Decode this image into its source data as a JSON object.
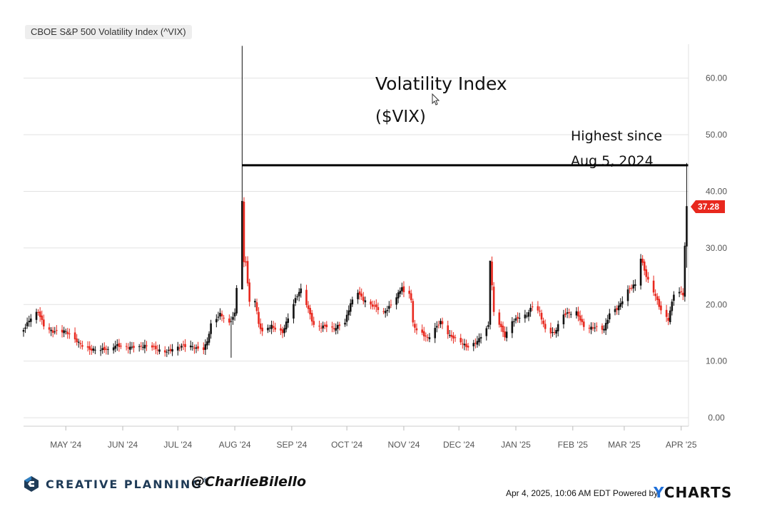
{
  "title": "CBOE S&P 500 Volatility Index (^VIX)",
  "annotations": {
    "main_line1": "Volatility Index",
    "main_line2": "($VIX)",
    "note_line1": "Highest since",
    "note_line2": "Aug 5, 2024"
  },
  "last_value_label": "37.28",
  "footer": {
    "brand": "CREATIVE PLANNING",
    "registered": "®",
    "handle": "@CharlieBilello",
    "timestamp": "Apr 4, 2025, 10:06 AM EDT Powered by",
    "provider_prefix": "Y",
    "provider_rest": "CHARTS"
  },
  "colors": {
    "up": "#111111",
    "down": "#e8281e",
    "grid": "#e2e2e2",
    "reference_line": "#000000",
    "badge": "#e8281e",
    "brand": "#1f3b57",
    "provider_accent": "#1e6fd9"
  },
  "icons": {
    "logo": "creative-planning-logo-mark"
  },
  "chart_data": {
    "type": "candlestick",
    "y_axis": {
      "min": -1.5,
      "max": 66,
      "ticks": [
        "0.00",
        "10.00",
        "20.00",
        "30.00",
        "40.00",
        "50.00",
        "60.00"
      ],
      "position": "right"
    },
    "x_axis": {
      "tick_labels": [
        "MAY '24",
        "JUN '24",
        "JUL '24",
        "AUG '24",
        "SEP '24",
        "OCT '24",
        "NOV '24",
        "DEC '24",
        "JAN '25",
        "FEB '25",
        "MAR '25",
        "APR '25"
      ],
      "tick_dates": [
        "2024-05-01",
        "2024-06-01",
        "2024-07-01",
        "2024-08-01",
        "2024-09-01",
        "2024-10-01",
        "2024-11-01",
        "2024-12-01",
        "2025-01-01",
        "2025-02-01",
        "2025-03-01",
        "2025-04-01"
      ],
      "range": [
        "2024-04-08",
        "2025-04-05"
      ]
    },
    "reference_line": {
      "value": 44.6,
      "from": "2024-08-05",
      "to": "2025-04-04"
    },
    "last_value": 37.28,
    "grid": "horizontal",
    "close_anchors": [
      [
        "2024-04-08",
        15.5
      ],
      [
        "2024-04-12",
        17.3
      ],
      [
        "2024-04-16",
        18.5
      ],
      [
        "2024-04-19",
        16.5
      ],
      [
        "2024-04-24",
        15.5
      ],
      [
        "2024-04-30",
        15.2
      ],
      [
        "2024-05-06",
        13.5
      ],
      [
        "2024-05-14",
        12.4
      ],
      [
        "2024-05-20",
        12.0
      ],
      [
        "2024-05-24",
        11.6
      ],
      [
        "2024-05-29",
        12.8
      ],
      [
        "2024-06-04",
        12.8
      ],
      [
        "2024-06-10",
        12.4
      ],
      [
        "2024-06-17",
        12.3
      ],
      [
        "2024-06-24",
        12.0
      ],
      [
        "2024-07-01",
        12.3
      ],
      [
        "2024-07-08",
        12.4
      ],
      [
        "2024-07-15",
        12.5
      ],
      [
        "2024-07-17",
        13.8
      ],
      [
        "2024-07-19",
        16.5
      ],
      [
        "2024-07-24",
        18.0
      ],
      [
        "2024-07-29",
        16.4
      ],
      [
        "2024-08-01",
        18.6
      ],
      [
        "2024-08-02",
        23.4
      ],
      [
        "2024-08-05",
        38.6
      ],
      [
        "2024-08-06",
        27.7
      ],
      [
        "2024-08-07",
        27.9
      ],
      [
        "2024-08-08",
        23.8
      ],
      [
        "2024-08-09",
        20.4
      ],
      [
        "2024-08-12",
        20.7
      ],
      [
        "2024-08-14",
        16.2
      ],
      [
        "2024-08-16",
        14.8
      ],
      [
        "2024-08-21",
        16.3
      ],
      [
        "2024-08-27",
        15.4
      ],
      [
        "2024-09-03",
        20.7
      ],
      [
        "2024-09-06",
        22.4
      ],
      [
        "2024-09-10",
        19.1
      ],
      [
        "2024-09-13",
        16.6
      ],
      [
        "2024-09-19",
        16.3
      ],
      [
        "2024-09-24",
        15.4
      ],
      [
        "2024-09-30",
        16.7
      ],
      [
        "2024-10-03",
        20.5
      ],
      [
        "2024-10-07",
        22.6
      ],
      [
        "2024-10-10",
        20.9
      ],
      [
        "2024-10-14",
        19.7
      ],
      [
        "2024-10-21",
        18.4
      ],
      [
        "2024-10-25",
        20.3
      ],
      [
        "2024-10-31",
        23.2
      ],
      [
        "2024-11-01",
        21.9
      ],
      [
        "2024-11-04",
        21.8
      ],
      [
        "2024-11-05",
        20.5
      ],
      [
        "2024-11-06",
        16.3
      ],
      [
        "2024-11-08",
        15.2
      ],
      [
        "2024-11-14",
        14.3
      ],
      [
        "2024-11-18",
        16.1
      ],
      [
        "2024-11-21",
        17.0
      ],
      [
        "2024-11-26",
        14.1
      ],
      [
        "2024-12-02",
        13.3
      ],
      [
        "2024-12-06",
        12.8
      ],
      [
        "2024-12-12",
        13.9
      ],
      [
        "2024-12-17",
        15.9
      ],
      [
        "2024-12-18",
        27.6
      ],
      [
        "2024-12-20",
        18.4
      ],
      [
        "2024-12-26",
        14.7
      ],
      [
        "2024-12-30",
        17.4
      ],
      [
        "2025-01-07",
        17.8
      ],
      [
        "2025-01-10",
        19.5
      ],
      [
        "2025-01-14",
        18.7
      ],
      [
        "2025-01-17",
        15.9
      ],
      [
        "2025-01-22",
        15.1
      ],
      [
        "2025-01-27",
        17.9
      ],
      [
        "2025-02-03",
        18.6
      ],
      [
        "2025-02-07",
        16.5
      ],
      [
        "2025-02-12",
        16.0
      ],
      [
        "2025-02-18",
        15.3
      ],
      [
        "2025-02-21",
        18.2
      ],
      [
        "2025-02-25",
        19.4
      ],
      [
        "2025-03-03",
        22.8
      ],
      [
        "2025-03-07",
        23.4
      ],
      [
        "2025-03-10",
        27.9
      ],
      [
        "2025-03-13",
        24.7
      ],
      [
        "2025-03-18",
        21.7
      ],
      [
        "2025-03-21",
        19.3
      ],
      [
        "2025-03-25",
        17.5
      ],
      [
        "2025-03-28",
        21.7
      ],
      [
        "2025-04-01",
        21.8
      ],
      [
        "2025-04-02",
        21.5
      ],
      [
        "2025-04-03",
        30.0
      ],
      [
        "2025-04-04",
        37.28
      ]
    ],
    "spikes": [
      {
        "date": "2024-08-05",
        "high": 65.7,
        "low": 23.4
      },
      {
        "date": "2024-12-18",
        "high": 27.6,
        "low": 15.6
      },
      {
        "date": "2025-04-04",
        "high": 45.0,
        "low": 26.5
      },
      {
        "date": "2024-07-30",
        "low": 10.6
      }
    ]
  }
}
